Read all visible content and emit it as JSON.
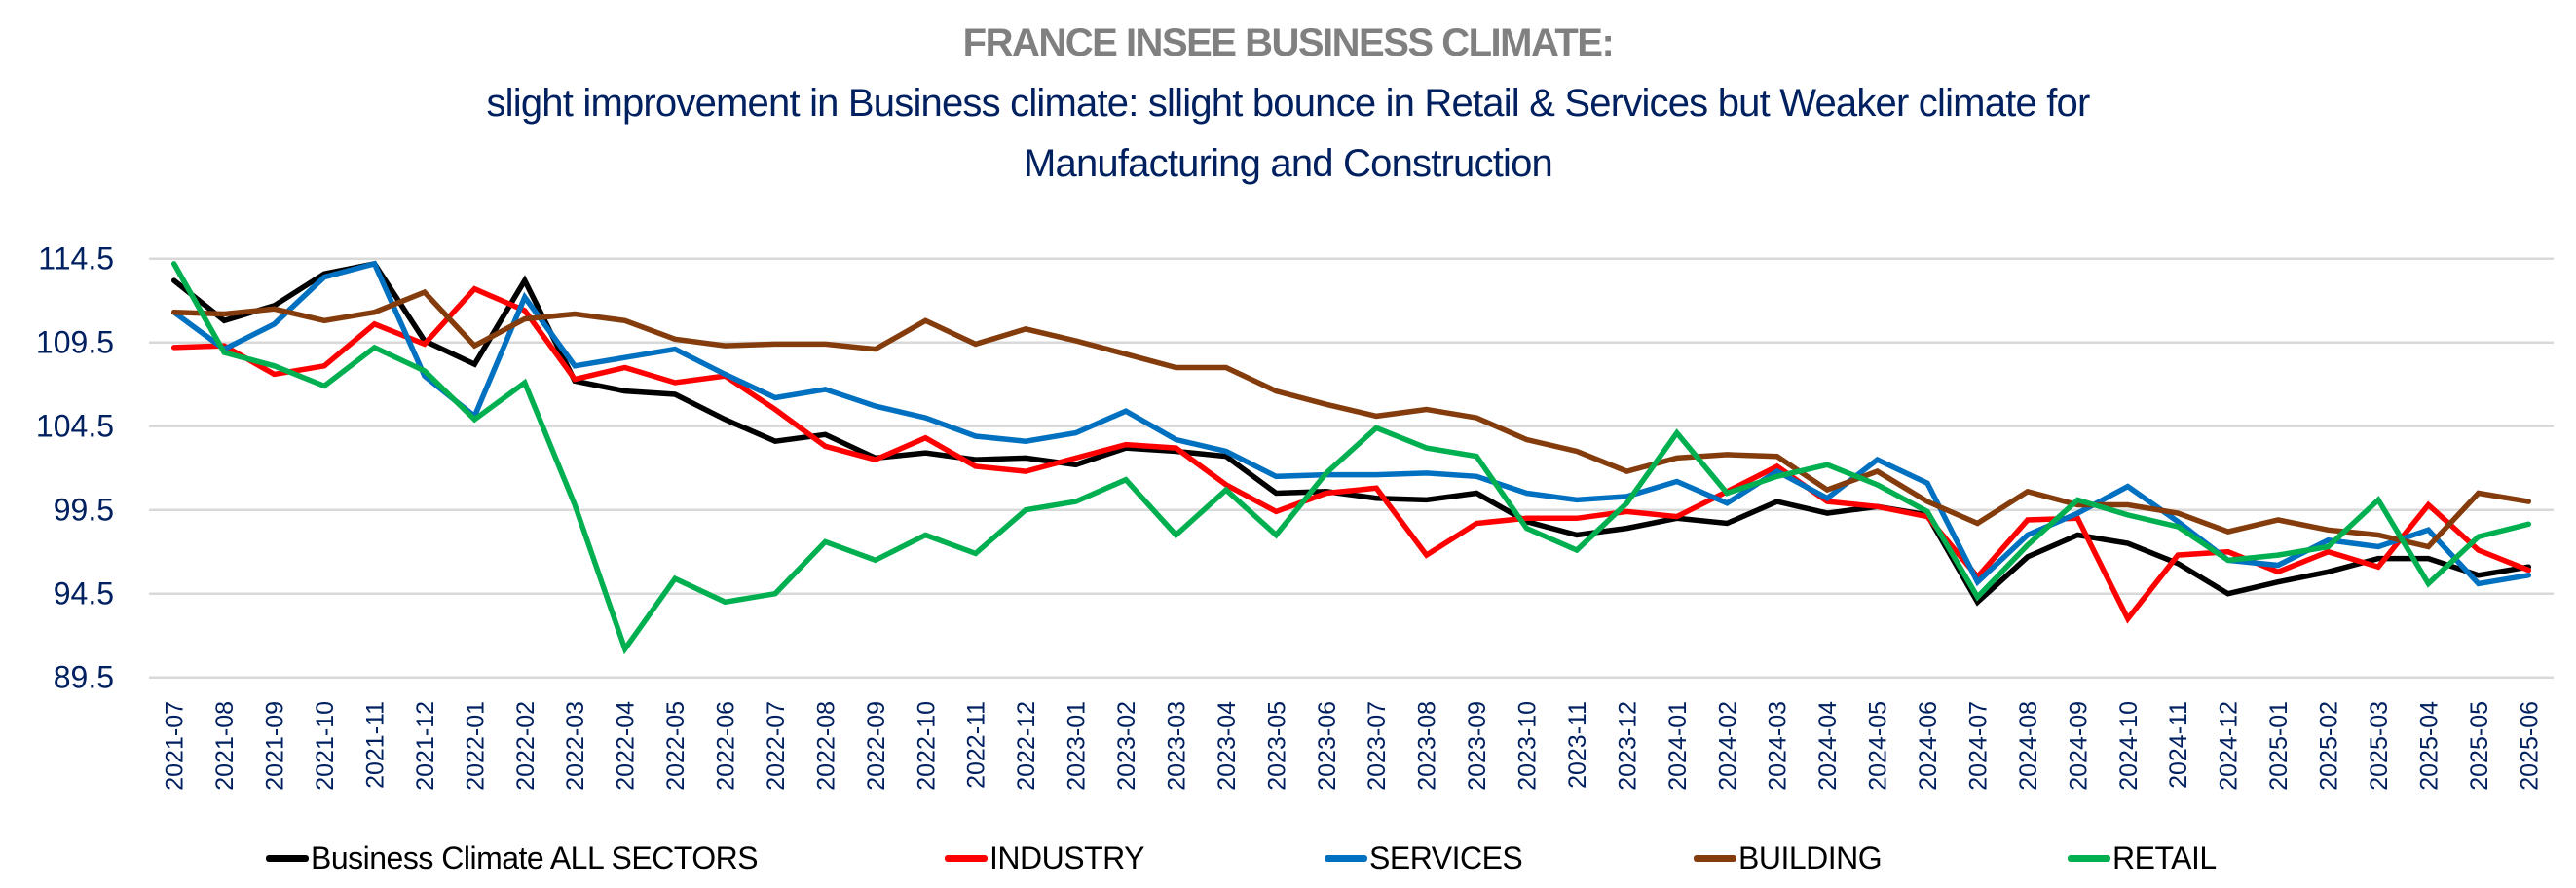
{
  "title": "FRANCE INSEE BUSINESS CLIMATE:",
  "subtitle_line1": "slight improvement in Business climate: sllight bounce in Retail & Services but Weaker climate for",
  "subtitle_line2": "Manufacturing  and Construction",
  "chart_data": {
    "type": "line",
    "title": "FRANCE INSEE BUSINESS CLIMATE:",
    "subtitle": "slight improvement in Business climate: sllight bounce in Retail & Services but Weaker climate for Manufacturing  and Construction",
    "xlabel": "",
    "ylabel": "",
    "ylim": [
      89.5,
      114.5
    ],
    "yticks": [
      "114.5",
      "109.5",
      "104.5",
      "99.5",
      "94.5",
      "89.5"
    ],
    "grid": "horizontal",
    "legend_position": "bottom",
    "x": [
      "2021-07",
      "2021-08",
      "2021-09",
      "2021-10",
      "2021-11",
      "2021-12",
      "2022-01",
      "2022-02",
      "2022-03",
      "2022-04",
      "2022-05",
      "2022-06",
      "2022-07",
      "2022-08",
      "2022-09",
      "2022-10",
      "2022-11",
      "2022-12",
      "2023-01",
      "2023-02",
      "2023-03",
      "2023-04",
      "2023-05",
      "2023-06",
      "2023-07",
      "2023-08",
      "2023-09",
      "2023-10",
      "2023-11",
      "2023-12",
      "2024-01",
      "2024-02",
      "2024-03",
      "2024-04",
      "2024-05",
      "2024-06",
      "2024-07",
      "2024-08",
      "2024-09",
      "2024-10",
      "2024-11",
      "2024-12",
      "2025-01",
      "2025-02",
      "2025-03",
      "2025-04",
      "2025-05",
      "2025-06"
    ],
    "series": [
      {
        "name": "Business Climate ALL SECTORS",
        "color": "#000000",
        "values": [
          113.2,
          110.8,
          111.7,
          113.6,
          114.2,
          109.6,
          108.2,
          113.2,
          107.2,
          106.6,
          106.4,
          104.9,
          103.6,
          104.0,
          102.6,
          102.9,
          102.5,
          102.6,
          102.2,
          103.2,
          103.0,
          102.7,
          100.5,
          100.6,
          100.2,
          100.1,
          100.5,
          98.8,
          98.0,
          98.4,
          99.0,
          98.7,
          100.0,
          99.3,
          99.7,
          99.2,
          94.0,
          96.7,
          98.0,
          97.5,
          96.3,
          94.5,
          95.2,
          95.8,
          96.6,
          96.6,
          95.6,
          96.1
        ]
      },
      {
        "name": "INDUSTRY",
        "color": "#ff0000",
        "values": [
          109.2,
          109.3,
          107.6,
          108.1,
          110.6,
          109.4,
          112.7,
          111.4,
          107.3,
          108.0,
          107.1,
          107.5,
          105.5,
          103.3,
          102.5,
          103.8,
          102.1,
          101.8,
          102.6,
          103.4,
          103.2,
          101.0,
          99.4,
          100.5,
          100.8,
          96.8,
          98.7,
          99.0,
          99.0,
          99.4,
          99.1,
          100.6,
          102.1,
          100.0,
          99.7,
          99.1,
          95.5,
          98.9,
          99.0,
          93.0,
          96.8,
          97.0,
          95.8,
          97.0,
          96.1,
          99.8,
          97.1,
          95.9
        ]
      },
      {
        "name": "SERVICES",
        "color": "#0070c0",
        "values": [
          111.3,
          109.1,
          110.6,
          113.4,
          114.2,
          107.5,
          105.1,
          112.2,
          108.1,
          108.6,
          109.1,
          107.6,
          106.2,
          106.7,
          105.7,
          105.0,
          103.9,
          103.6,
          104.1,
          105.4,
          103.7,
          103.0,
          101.5,
          101.6,
          101.6,
          101.7,
          101.5,
          100.5,
          100.1,
          100.3,
          101.2,
          99.9,
          101.8,
          100.2,
          102.5,
          101.1,
          95.2,
          98.0,
          99.3,
          100.9,
          98.8,
          96.5,
          96.2,
          97.7,
          97.3,
          98.3,
          95.1,
          95.6
        ]
      },
      {
        "name": "BUILDING",
        "color": "#843c0c",
        "values": [
          111.3,
          111.2,
          111.5,
          110.8,
          111.3,
          112.5,
          109.3,
          110.9,
          111.2,
          110.8,
          109.7,
          109.3,
          109.4,
          109.4,
          109.1,
          110.8,
          109.4,
          110.3,
          109.6,
          108.8,
          108.0,
          108.0,
          106.6,
          105.8,
          105.1,
          105.5,
          105.0,
          103.7,
          103.0,
          101.8,
          102.6,
          102.8,
          102.7,
          100.7,
          101.8,
          100.0,
          98.7,
          100.6,
          99.8,
          99.8,
          99.3,
          98.2,
          98.9,
          98.3,
          98.0,
          97.3,
          100.5,
          100.0
        ]
      },
      {
        "name": "RETAIL",
        "color": "#00b050",
        "values": [
          114.2,
          108.9,
          108.1,
          106.9,
          109.2,
          107.8,
          104.9,
          107.1,
          99.8,
          91.2,
          95.4,
          94.0,
          94.5,
          97.6,
          96.5,
          98.0,
          96.9,
          99.5,
          100.0,
          101.3,
          98.0,
          100.7,
          98.0,
          101.7,
          104.4,
          103.2,
          102.7,
          98.4,
          97.1,
          99.9,
          104.1,
          100.5,
          101.5,
          102.2,
          101.0,
          99.4,
          94.3,
          97.4,
          100.1,
          99.2,
          98.5,
          96.5,
          96.8,
          97.3,
          100.1,
          95.1,
          97.9,
          98.65
        ]
      }
    ]
  }
}
